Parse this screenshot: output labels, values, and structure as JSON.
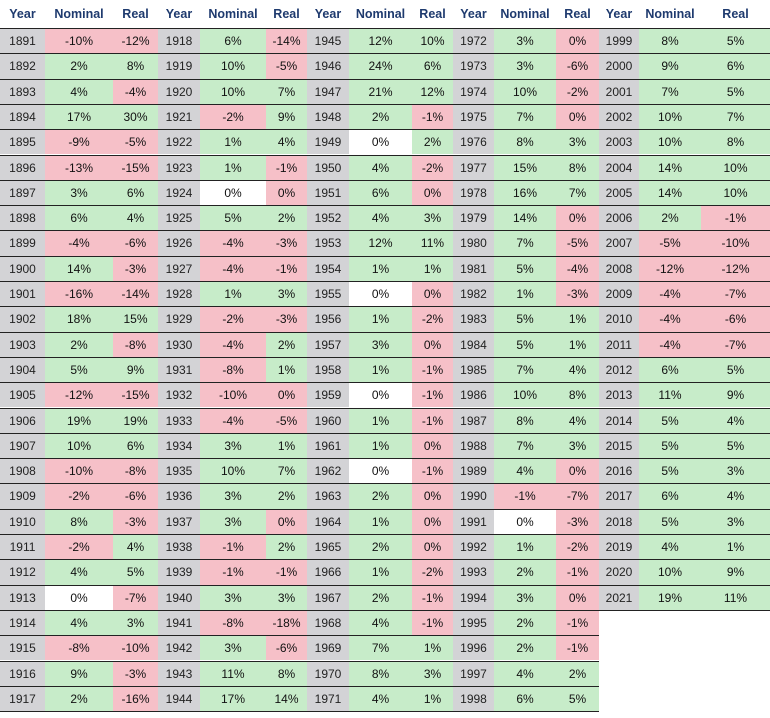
{
  "headers": [
    "Year",
    "Nominal",
    "Real"
  ],
  "groups": [
    {
      "rows": [
        [
          "1891",
          "-10%",
          "-12%"
        ],
        [
          "1892",
          "2%",
          "8%"
        ],
        [
          "1893",
          "4%",
          "-4%"
        ],
        [
          "1894",
          "17%",
          "30%"
        ],
        [
          "1895",
          "-9%",
          "-5%"
        ],
        [
          "1896",
          "-13%",
          "-15%"
        ],
        [
          "1897",
          "3%",
          "6%"
        ],
        [
          "1898",
          "6%",
          "4%"
        ],
        [
          "1899",
          "-4%",
          "-6%"
        ],
        [
          "1900",
          "14%",
          "-3%"
        ],
        [
          "1901",
          "-16%",
          "-14%"
        ],
        [
          "1902",
          "18%",
          "15%"
        ],
        [
          "1903",
          "2%",
          "-8%"
        ],
        [
          "1904",
          "5%",
          "9%"
        ],
        [
          "1905",
          "-12%",
          "-15%"
        ],
        [
          "1906",
          "19%",
          "19%"
        ],
        [
          "1907",
          "10%",
          "6%"
        ],
        [
          "1908",
          "-10%",
          "-8%"
        ],
        [
          "1909",
          "-2%",
          "-6%"
        ],
        [
          "1910",
          "8%",
          "-3%"
        ],
        [
          "1911",
          "-2%",
          "4%"
        ],
        [
          "1912",
          "4%",
          "5%"
        ],
        [
          "1913",
          "0%",
          "-7%"
        ],
        [
          "1914",
          "4%",
          "3%"
        ],
        [
          "1915",
          "-8%",
          "-10%"
        ],
        [
          "1916",
          "9%",
          "-3%"
        ],
        [
          "1917",
          "2%",
          "-16%"
        ]
      ]
    },
    {
      "rows": [
        [
          "1918",
          "6%",
          "-14%"
        ],
        [
          "1919",
          "10%",
          "-5%"
        ],
        [
          "1920",
          "10%",
          "7%"
        ],
        [
          "1921",
          "-2%",
          "9%"
        ],
        [
          "1922",
          "1%",
          "4%"
        ],
        [
          "1923",
          "1%",
          "-1%"
        ],
        [
          "1924",
          "0%",
          "0%"
        ],
        [
          "1925",
          "5%",
          "2%"
        ],
        [
          "1926",
          "-4%",
          "-3%"
        ],
        [
          "1927",
          "-4%",
          "-1%"
        ],
        [
          "1928",
          "1%",
          "3%"
        ],
        [
          "1929",
          "-2%",
          "-3%"
        ],
        [
          "1930",
          "-4%",
          "2%"
        ],
        [
          "1931",
          "-8%",
          "1%"
        ],
        [
          "1932",
          "-10%",
          "0%"
        ],
        [
          "1933",
          "-4%",
          "-5%"
        ],
        [
          "1934",
          "3%",
          "1%"
        ],
        [
          "1935",
          "10%",
          "7%"
        ],
        [
          "1936",
          "3%",
          "2%"
        ],
        [
          "1937",
          "3%",
          "0%"
        ],
        [
          "1938",
          "-1%",
          "2%"
        ],
        [
          "1939",
          "-1%",
          "-1%"
        ],
        [
          "1940",
          "3%",
          "3%"
        ],
        [
          "1941",
          "-8%",
          "-18%"
        ],
        [
          "1942",
          "3%",
          "-6%"
        ],
        [
          "1943",
          "11%",
          "8%"
        ],
        [
          "1944",
          "17%",
          "14%"
        ]
      ]
    },
    {
      "rows": [
        [
          "1945",
          "12%",
          "10%"
        ],
        [
          "1946",
          "24%",
          "6%"
        ],
        [
          "1947",
          "21%",
          "12%"
        ],
        [
          "1948",
          "2%",
          "-1%"
        ],
        [
          "1949",
          "0%",
          "2%"
        ],
        [
          "1950",
          "4%",
          "-2%"
        ],
        [
          "1951",
          "6%",
          "0%"
        ],
        [
          "1952",
          "4%",
          "3%"
        ],
        [
          "1953",
          "12%",
          "11%"
        ],
        [
          "1954",
          "1%",
          "1%"
        ],
        [
          "1955",
          "0%",
          "0%"
        ],
        [
          "1956",
          "1%",
          "-2%"
        ],
        [
          "1957",
          "3%",
          "0%"
        ],
        [
          "1958",
          "1%",
          "-1%"
        ],
        [
          "1959",
          "0%",
          "-1%"
        ],
        [
          "1960",
          "1%",
          "-1%"
        ],
        [
          "1961",
          "1%",
          "0%"
        ],
        [
          "1962",
          "0%",
          "-1%"
        ],
        [
          "1963",
          "2%",
          "0%"
        ],
        [
          "1964",
          "1%",
          "0%"
        ],
        [
          "1965",
          "2%",
          "0%"
        ],
        [
          "1966",
          "1%",
          "-2%"
        ],
        [
          "1967",
          "2%",
          "-1%"
        ],
        [
          "1968",
          "4%",
          "-1%"
        ],
        [
          "1969",
          "7%",
          "1%"
        ],
        [
          "1970",
          "8%",
          "3%"
        ],
        [
          "1971",
          "4%",
          "1%"
        ]
      ]
    },
    {
      "rows": [
        [
          "1972",
          "3%",
          "0%"
        ],
        [
          "1973",
          "3%",
          "-6%"
        ],
        [
          "1974",
          "10%",
          "-2%"
        ],
        [
          "1975",
          "7%",
          "0%"
        ],
        [
          "1976",
          "8%",
          "3%"
        ],
        [
          "1977",
          "15%",
          "8%"
        ],
        [
          "1978",
          "16%",
          "7%"
        ],
        [
          "1979",
          "14%",
          "0%"
        ],
        [
          "1980",
          "7%",
          "-5%"
        ],
        [
          "1981",
          "5%",
          "-4%"
        ],
        [
          "1982",
          "1%",
          "-3%"
        ],
        [
          "1983",
          "5%",
          "1%"
        ],
        [
          "1984",
          "5%",
          "1%"
        ],
        [
          "1985",
          "7%",
          "4%"
        ],
        [
          "1986",
          "10%",
          "8%"
        ],
        [
          "1987",
          "8%",
          "4%"
        ],
        [
          "1988",
          "7%",
          "3%"
        ],
        [
          "1989",
          "4%",
          "0%"
        ],
        [
          "1990",
          "-1%",
          "-7%"
        ],
        [
          "1991",
          "0%",
          "-3%"
        ],
        [
          "1992",
          "1%",
          "-2%"
        ],
        [
          "1993",
          "2%",
          "-1%"
        ],
        [
          "1994",
          "3%",
          "0%"
        ],
        [
          "1995",
          "2%",
          "-1%"
        ],
        [
          "1996",
          "2%",
          "-1%"
        ],
        [
          "1997",
          "4%",
          "2%"
        ],
        [
          "1998",
          "6%",
          "5%"
        ]
      ]
    },
    {
      "rows": [
        [
          "1999",
          "8%",
          "5%"
        ],
        [
          "2000",
          "9%",
          "6%"
        ],
        [
          "2001",
          "7%",
          "5%"
        ],
        [
          "2002",
          "10%",
          "7%"
        ],
        [
          "2003",
          "10%",
          "8%"
        ],
        [
          "2004",
          "14%",
          "10%"
        ],
        [
          "2005",
          "14%",
          "10%"
        ],
        [
          "2006",
          "2%",
          "-1%"
        ],
        [
          "2007",
          "-5%",
          "-10%"
        ],
        [
          "2008",
          "-12%",
          "-12%"
        ],
        [
          "2009",
          "-4%",
          "-7%"
        ],
        [
          "2010",
          "-4%",
          "-6%"
        ],
        [
          "2011",
          "-4%",
          "-7%"
        ],
        [
          "2012",
          "6%",
          "5%"
        ],
        [
          "2013",
          "11%",
          "9%"
        ],
        [
          "2014",
          "5%",
          "4%"
        ],
        [
          "2015",
          "5%",
          "5%"
        ],
        [
          "2016",
          "5%",
          "3%"
        ],
        [
          "2017",
          "6%",
          "4%"
        ],
        [
          "2018",
          "5%",
          "3%"
        ],
        [
          "2019",
          "4%",
          "1%"
        ],
        [
          "2020",
          "10%",
          "9%"
        ],
        [
          "2021",
          "19%",
          "11%"
        ]
      ]
    }
  ],
  "colors": {
    "header_text": "#1e3a6e",
    "year_bg": "#d3d3d6",
    "positive_bg": "#c7ecc9",
    "negative_bg": "#f6c0c8",
    "zero_nominal_bg": "#ffffff",
    "rule": "#222222"
  }
}
